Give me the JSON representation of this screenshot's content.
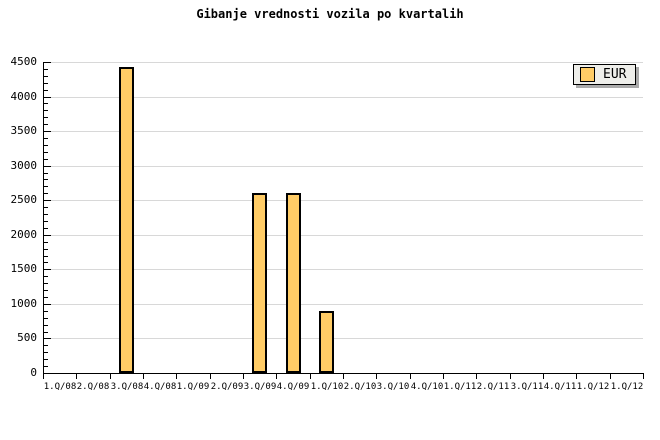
{
  "title": "Gibanje vrednosti vozila po kvartalih",
  "chart_data": {
    "type": "bar",
    "title": "Gibanje vrednosti vozila po kvartalih",
    "categories": [
      "1.Q/08",
      "2.Q/08",
      "3.Q/08",
      "4.Q/08",
      "1.Q/09",
      "2.Q/09",
      "3.Q/09",
      "4.Q/09",
      "1.Q/10",
      "2.Q/10",
      "3.Q/10",
      "4.Q/10",
      "1.Q/11",
      "2.Q/11",
      "3.Q/11",
      "4.Q/11",
      "1.Q/12",
      "1.Q/12"
    ],
    "series": [
      {
        "name": "EUR",
        "values": [
          0,
          0,
          4430,
          0,
          0,
          0,
          2600,
          2600,
          890,
          0,
          0,
          0,
          0,
          0,
          0,
          0,
          0,
          0
        ]
      }
    ],
    "xlabel": "",
    "ylabel": "",
    "ylim": [
      0,
      4500
    ],
    "yticks": [
      0,
      500,
      1000,
      1500,
      2000,
      2500,
      3000,
      3500,
      4000,
      4500
    ],
    "ytick_major_interval": 500,
    "ytick_minor_interval": 100,
    "grid": "horizontal-major-only",
    "legend_position": "top-right",
    "colors": {
      "bar_fill": "#FFCC66",
      "bar_border": "#000000",
      "grid": "#D8D8D8",
      "axis": "#000000",
      "text": "#000000",
      "legend_bg": "#EEEEEA",
      "legend_shadow": "#AAAAAA",
      "background": "#FFFFFF"
    }
  }
}
